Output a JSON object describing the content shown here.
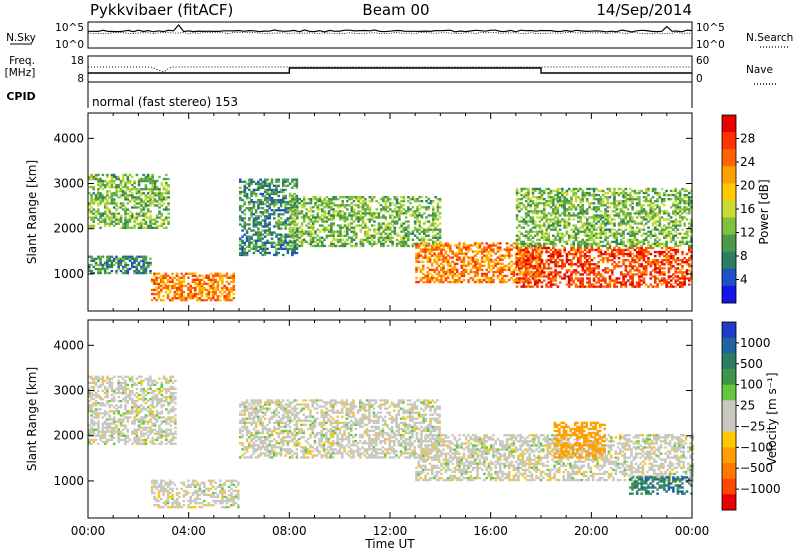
{
  "header": {
    "station": "Pykkvibaer (fitACF)",
    "beam": "Beam 00",
    "date": "14/Sep/2014"
  },
  "strips": {
    "nsky_label": "N.Sky",
    "nsky_top": "10^5",
    "nsky_bottom": "10^0",
    "nsearch_label": "N.Search",
    "nsearch_top": "10^5",
    "nsearch_bottom": "10^0",
    "freq_label": "Freq.",
    "freq_unit": "[MHz]",
    "freq_top": "18",
    "freq_bottom": "8",
    "nave_label": "Nave",
    "nave_top": "60",
    "nave_bottom": "0",
    "cpid_label": "CPID",
    "cpid_text": "normal (fast stereo) 153"
  },
  "chart_data": [
    {
      "type": "heatmap",
      "panel": "power",
      "ylabel": "Slant Range [km]",
      "xlabel": "Time UT",
      "xlim_hours": [
        0,
        24
      ],
      "ylim_km": [
        180,
        4560
      ],
      "colorbar": {
        "label": "Power [dB]",
        "ticks": [
          "28",
          "24",
          "20",
          "16",
          "12",
          "8",
          "4"
        ],
        "range": [
          0,
          32
        ],
        "colors": [
          "#1414e6",
          "#1e50c8",
          "#2d7d5f",
          "#4a9a4a",
          "#7fc23c",
          "#c8dc32",
          "#ffc800",
          "#ffa000",
          "#ff6400",
          "#ff3200",
          "#e60000"
        ]
      },
      "echo_regions": [
        {
          "t_start": 0.0,
          "t_end": 3.2,
          "range_lo_km": 2000,
          "range_hi_km": 3200,
          "power_db": 12
        },
        {
          "t_start": 0.0,
          "t_end": 2.5,
          "range_lo_km": 1000,
          "range_hi_km": 1400,
          "power_db": 8
        },
        {
          "t_start": 2.5,
          "t_end": 5.8,
          "range_lo_km": 400,
          "range_hi_km": 1000,
          "power_db": 24
        },
        {
          "t_start": 6.0,
          "t_end": 8.3,
          "range_lo_km": 1400,
          "range_hi_km": 3100,
          "power_db": 8
        },
        {
          "t_start": 8.0,
          "t_end": 14.0,
          "range_lo_km": 1600,
          "range_hi_km": 2700,
          "power_db": 12
        },
        {
          "t_start": 13.0,
          "t_end": 18.0,
          "range_lo_km": 800,
          "range_hi_km": 1700,
          "power_db": 24
        },
        {
          "t_start": 17.0,
          "t_end": 24.0,
          "range_lo_km": 700,
          "range_hi_km": 1600,
          "power_db": 28
        },
        {
          "t_start": 17.0,
          "t_end": 24.0,
          "range_lo_km": 1600,
          "range_hi_km": 2900,
          "power_db": 12
        }
      ]
    },
    {
      "type": "heatmap",
      "panel": "velocity",
      "ylabel": "Slant Range [km]",
      "xlabel": "Time UT",
      "xlim_hours": [
        0,
        24
      ],
      "ylim_km": [
        180,
        4560
      ],
      "colorbar": {
        "label": "Velocity [m s⁻¹]",
        "ticks": [
          "1000",
          "500",
          "100",
          "25",
          "−25",
          "−100",
          "−500",
          "−1000"
        ],
        "colors": [
          "#1e3cc8",
          "#1e64a0",
          "#2d7d5f",
          "#3c9646",
          "#64c83c",
          "#c8c8be",
          "#c8c8be",
          "#ffc800",
          "#ffa000",
          "#ff7800",
          "#ff4600",
          "#e60000"
        ]
      },
      "echo_regions": [
        {
          "t_start": 0.0,
          "t_end": 3.5,
          "range_lo_km": 1800,
          "range_hi_km": 3300,
          "velocity": 0
        },
        {
          "t_start": 2.5,
          "t_end": 6.0,
          "range_lo_km": 400,
          "range_hi_km": 1000,
          "velocity": 0
        },
        {
          "t_start": 6.0,
          "t_end": 14.0,
          "range_lo_km": 1500,
          "range_hi_km": 2800,
          "velocity": 0
        },
        {
          "t_start": 13.0,
          "t_end": 24.0,
          "range_lo_km": 1000,
          "range_hi_km": 2000,
          "velocity": 0
        },
        {
          "t_start": 18.5,
          "t_end": 20.5,
          "range_lo_km": 1500,
          "range_hi_km": 2300,
          "velocity": -200
        },
        {
          "t_start": 21.5,
          "t_end": 24.0,
          "range_lo_km": 700,
          "range_hi_km": 1100,
          "velocity": 300
        }
      ]
    }
  ],
  "xaxis": {
    "ticks": [
      "00:00",
      "04:00",
      "08:00",
      "12:00",
      "16:00",
      "20:00",
      "00:00"
    ],
    "label": "Time UT"
  },
  "yaxis_ticks": [
    "1000",
    "2000",
    "3000",
    "4000"
  ]
}
